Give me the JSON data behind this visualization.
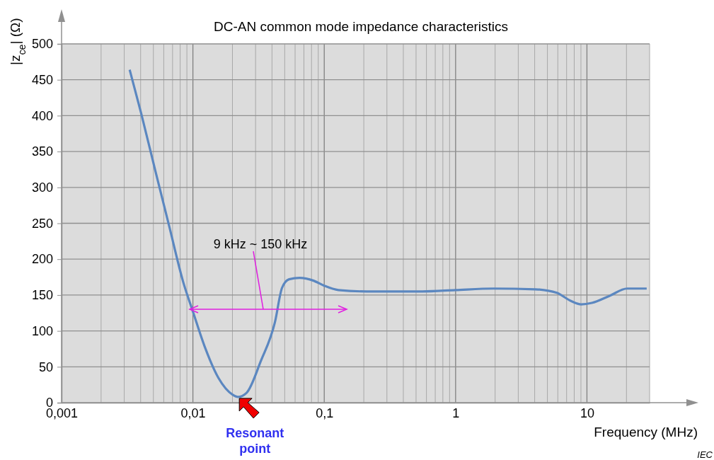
{
  "chart_data": {
    "type": "line",
    "title": "DC-AN common mode impedance characteristics",
    "xlabel": "Frequency   (MHz)",
    "ylabel": "|z$_{ce}$|  (Ω)",
    "log": "x",
    "grid": true,
    "marker": "none",
    "line_style": "solid",
    "xlim": [
      0.001,
      30
    ],
    "ylim": [
      0,
      500
    ],
    "xticks": [
      {
        "value": 0.001,
        "label": "0,001"
      },
      {
        "value": 0.01,
        "label": "0,01"
      },
      {
        "value": 0.1,
        "label": "0,1"
      },
      1,
      10
    ],
    "yticks": [
      0,
      50,
      100,
      150,
      200,
      250,
      300,
      350,
      400,
      450,
      500
    ],
    "x": [
      0.0033,
      0.00404,
      0.00516,
      0.0066,
      0.00847,
      0.01,
      0.0123,
      0.0157,
      0.0201,
      0.022,
      0.0257,
      0.0329,
      0.0421,
      0.0477,
      0.054,
      0.065,
      0.083,
      0.1,
      0.128,
      0.21,
      0.56,
      1,
      1.94,
      4.06,
      5.9,
      7.5,
      9.06,
      10.9,
      14.9,
      20.2,
      28.5
    ],
    "series": [
      {
        "color": "#5b87c0",
        "values": [
          464,
          403,
          324,
          246,
          167,
          127,
          78,
          34,
          11,
          8,
          14,
          58,
          112,
          160,
          172,
          174,
          170,
          163,
          157,
          155,
          155,
          157,
          159,
          158,
          153,
          142,
          137,
          139,
          149,
          159,
          159
        ]
      }
    ],
    "annotations": [
      "9 kHz ~ 150 kHz",
      {
        "text": "Resonant point",
        "x": 0.022,
        "y": 8
      },
      "IEC"
    ]
  }
}
